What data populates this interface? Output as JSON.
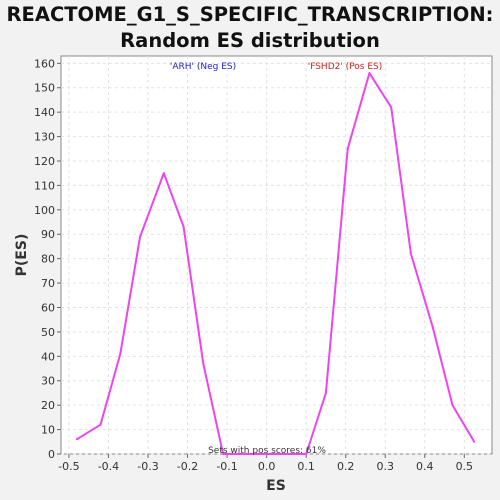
{
  "chart_data": {
    "type": "line",
    "title_line1": "REACTOME_G1_S_SPECIFIC_TRANSCRIPTION:",
    "title_line2": "Random ES distribution",
    "xlabel": "ES",
    "ylabel": "P(ES)",
    "xlim": [
      -0.52,
      0.57
    ],
    "ylim": [
      0,
      163
    ],
    "xticks": [
      -0.5,
      -0.4,
      -0.3,
      -0.2,
      -0.1,
      0.0,
      0.1,
      0.2,
      0.3,
      0.4,
      0.5
    ],
    "yticks": [
      0,
      10,
      20,
      30,
      40,
      50,
      60,
      70,
      80,
      90,
      100,
      110,
      120,
      130,
      140,
      150,
      160
    ],
    "grid": true,
    "series": [
      {
        "color": "#ee44ee",
        "x": [
          -0.48,
          -0.42,
          -0.37,
          -0.32,
          -0.26,
          -0.21,
          -0.16,
          -0.11,
          -0.06,
          0.0,
          0.05,
          0.1,
          0.15,
          0.205,
          0.26,
          0.315,
          0.365,
          0.42,
          0.47,
          0.525
        ],
        "y": [
          6,
          12,
          41,
          89,
          115,
          93,
          37,
          0,
          0,
          0,
          0,
          0,
          25,
          125,
          156,
          142,
          82,
          52,
          20,
          5
        ]
      }
    ],
    "annotations": {
      "neg_label": "'ARH' (Neg ES)",
      "pos_label": "'FSHD2' (Pos ES)",
      "footer": "Sets with pos scores: 61%"
    },
    "colors": {
      "neg_label": "#2222cc",
      "pos_label": "#cc2222",
      "footer": "#333333"
    }
  }
}
